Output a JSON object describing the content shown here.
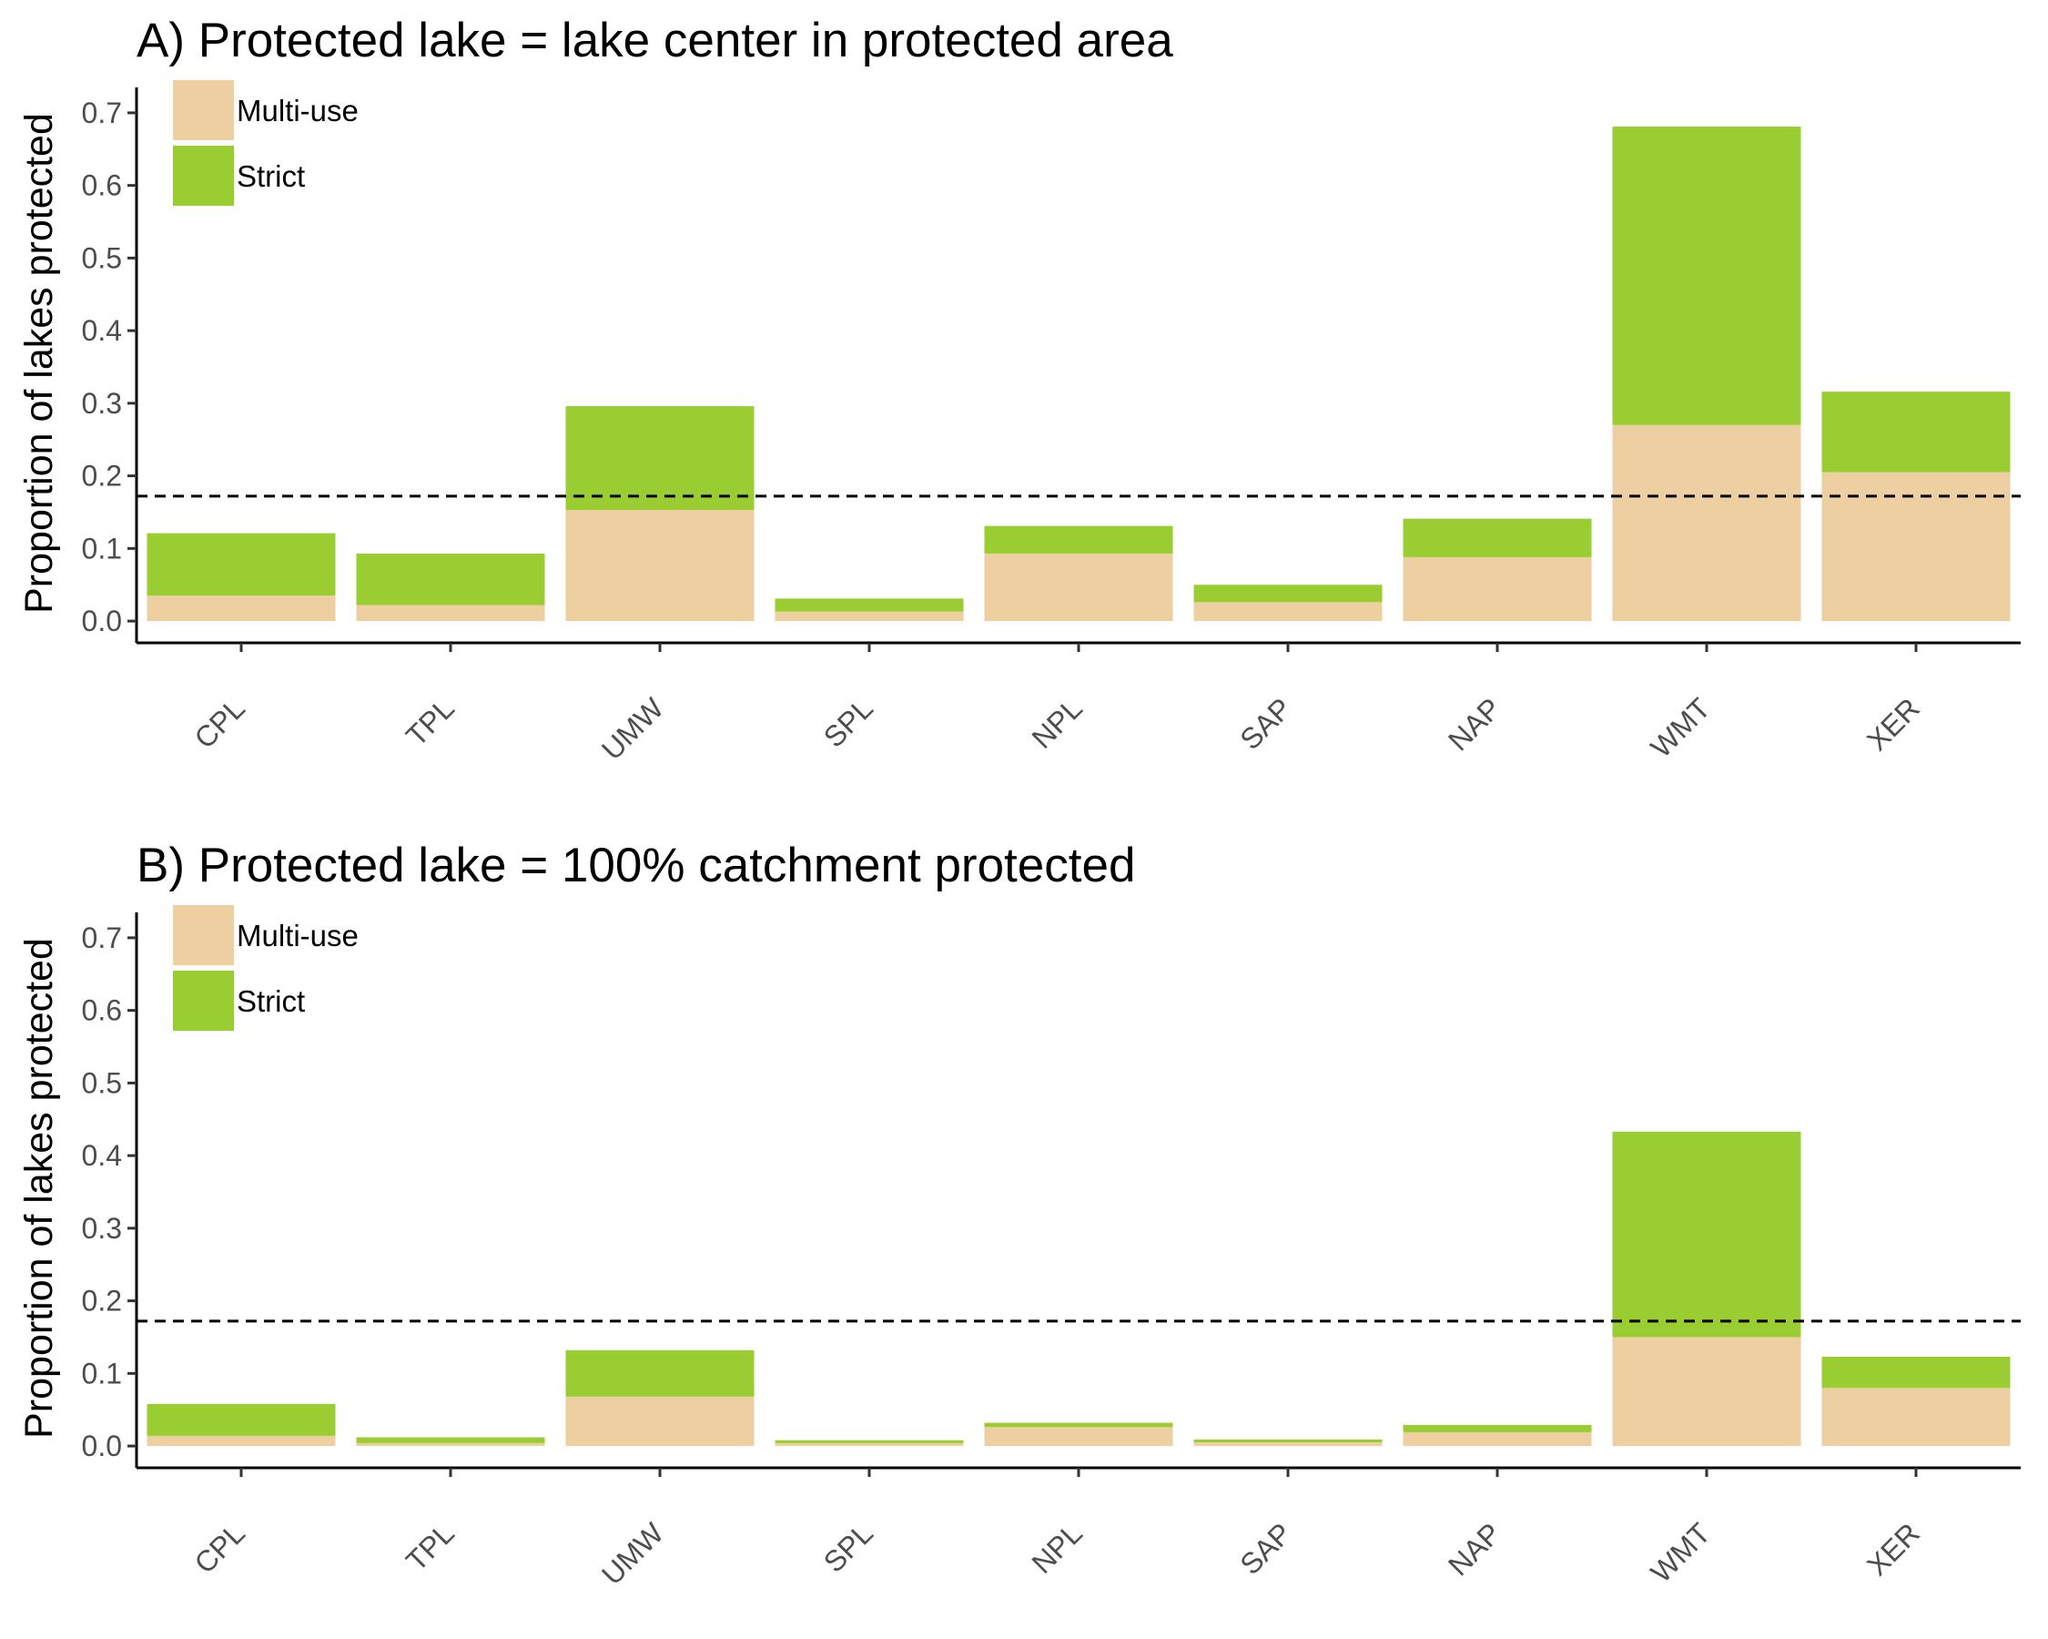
{
  "chart_data": [
    {
      "type": "bar",
      "stacked": true,
      "title": "A) Protected lake = lake center in protected area",
      "ylabel": "Proportion of lakes protected",
      "xlabel": "",
      "categories": [
        "CPL",
        "TPL",
        "UMW",
        "SPL",
        "NPL",
        "SAP",
        "NAP",
        "WMT",
        "XER"
      ],
      "yticks": [
        "0.0",
        "0.1",
        "0.2",
        "0.3",
        "0.4",
        "0.5",
        "0.6",
        "0.7"
      ],
      "ylim": [
        -0.03,
        0.735
      ],
      "reference_line": 0.172,
      "legend_position": "top-left",
      "series": [
        {
          "name": "Multi-use",
          "color": "#eecfa1",
          "values": [
            0.035,
            0.022,
            0.153,
            0.013,
            0.093,
            0.026,
            0.088,
            0.27,
            0.205
          ]
        },
        {
          "name": "Strict",
          "color": "#9acd32",
          "values": [
            0.086,
            0.071,
            0.143,
            0.018,
            0.038,
            0.024,
            0.053,
            0.411,
            0.111
          ]
        }
      ],
      "grid": false
    },
    {
      "type": "bar",
      "stacked": true,
      "title": "B) Protected lake = 100% catchment protected",
      "ylabel": "Proportion of lakes protected",
      "xlabel": "",
      "categories": [
        "CPL",
        "TPL",
        "UMW",
        "SPL",
        "NPL",
        "SAP",
        "NAP",
        "WMT",
        "XER"
      ],
      "yticks": [
        "0.0",
        "0.1",
        "0.2",
        "0.3",
        "0.4",
        "0.5",
        "0.6",
        "0.7"
      ],
      "ylim": [
        -0.03,
        0.735
      ],
      "reference_line": 0.172,
      "legend_position": "top-left",
      "series": [
        {
          "name": "Multi-use",
          "color": "#eecfa1",
          "values": [
            0.014,
            0.004,
            0.068,
            0.004,
            0.026,
            0.005,
            0.019,
            0.15,
            0.08
          ]
        },
        {
          "name": "Strict",
          "color": "#9acd32",
          "values": [
            0.044,
            0.008,
            0.064,
            0.004,
            0.006,
            0.004,
            0.01,
            0.283,
            0.043
          ]
        }
      ],
      "grid": false
    }
  ]
}
